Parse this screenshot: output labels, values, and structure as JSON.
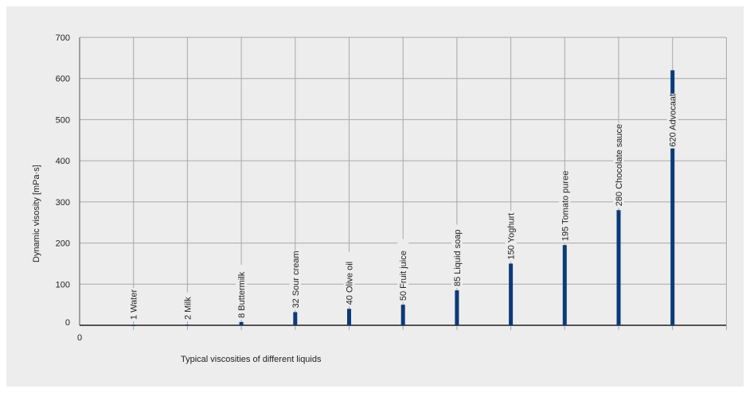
{
  "chart_data": {
    "type": "bar",
    "title": "",
    "xlabel": "Typical viscosities of different liquids",
    "ylabel": "Dynamic visosity [mPa·s]",
    "ylim": [
      0,
      700
    ],
    "yticks": [
      0,
      100,
      200,
      300,
      400,
      500,
      600,
      700
    ],
    "xorigin_label": "0",
    "grid": true,
    "bar_color": "#0b3a7a",
    "categories": [
      "1 Water",
      "2 Milk",
      "8 Buttermilk",
      "32 Sour cream",
      "40 Olive oil",
      "50 Fruit juice",
      "85 Liquid soap",
      "150 Yoghurt",
      "195 Tomato puree",
      "280 Chocolate sauce",
      "620 Advocaat"
    ],
    "values": [
      1,
      2,
      8,
      32,
      40,
      50,
      85,
      150,
      195,
      280,
      620
    ]
  }
}
